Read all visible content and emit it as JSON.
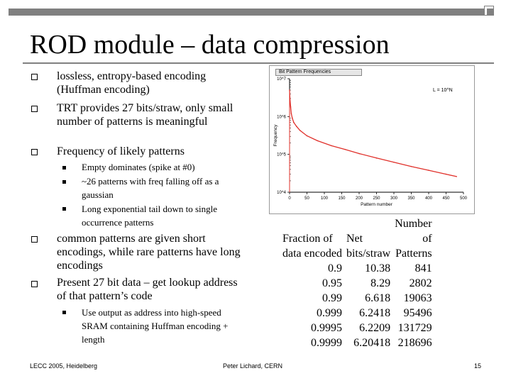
{
  "title": "ROD module – data compression",
  "bullets": [
    "lossless, entropy-based encoding (Huffman encoding)",
    "TRT provides 27 bits/straw, only small number of patterns is meaningful",
    "Frequency of likely patterns",
    "common patterns are given short encodings, while rare patterns have long encodings",
    "Present 27 bit data – get lookup address of that pattern’s code"
  ],
  "sub_bullets_frequency": [
    "Empty dominates (spike at #0)",
    "~26 patterns with freq falling off as a gaussian",
    "Long exponential tail down to single occurrence patterns"
  ],
  "sub_bullets_present": [
    "Use output as address into high-speed SRAM containing Huffman encoding + length"
  ],
  "chart_data": {
    "type": "line",
    "title": "Bit Pattern Frequencies",
    "annotation": "L = 10^N",
    "xlabel": "Pattern number",
    "ylabel": "Frequency",
    "xlim": [
      0,
      500
    ],
    "x_ticks": [
      "0",
      "50",
      "100",
      "150",
      "200",
      "250",
      "300",
      "350",
      "400",
      "450",
      "500"
    ],
    "y_scale": "log",
    "ylim": [
      10000,
      10000000
    ],
    "y_ticks": [
      "10^4",
      "10^5",
      "10^6",
      "10^7"
    ],
    "series": [
      {
        "color": "#e0302a",
        "x": [
          0,
          1,
          3,
          5,
          8,
          12,
          20,
          30,
          50,
          80,
          120,
          160,
          200,
          250,
          300,
          350,
          400,
          450,
          480
        ],
        "y": [
          5000000,
          3000000,
          1800000,
          1200000,
          900000,
          700000,
          550000,
          430000,
          310000,
          230000,
          170000,
          135000,
          105000,
          80000,
          62000,
          48000,
          38000,
          30000,
          26000
        ]
      }
    ]
  },
  "table": {
    "headers": [
      "Fraction of data encoded",
      "Net bits/straw",
      "Number of Patterns"
    ],
    "header_lines": [
      [
        "",
        "",
        "Number"
      ],
      [
        "Fraction of",
        "Net",
        "of"
      ],
      [
        "data encoded",
        "bits/straw",
        "Patterns"
      ]
    ],
    "rows": [
      [
        "0.9",
        "10.38",
        "841"
      ],
      [
        "0.95",
        "8.29",
        "2802"
      ],
      [
        "0.99",
        "6.618",
        "19063"
      ],
      [
        "0.999",
        "6.2418",
        "95496"
      ],
      [
        "0.9995",
        "6.2209",
        "131729"
      ],
      [
        "0.9999",
        "6.20418",
        "218696"
      ]
    ]
  },
  "footer": {
    "left": "LECC 2005, Heidelberg",
    "center": "Peter Lichard, CERN",
    "page": "15"
  }
}
